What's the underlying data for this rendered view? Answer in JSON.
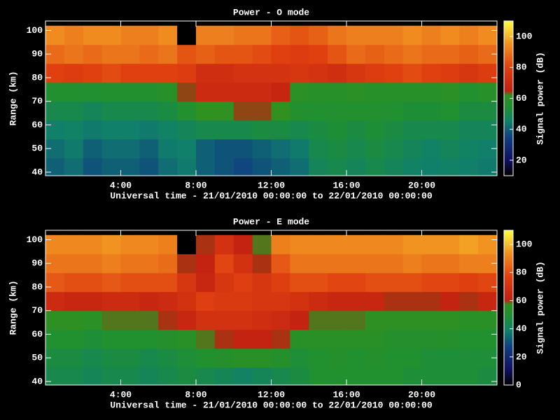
{
  "chart_data": [
    {
      "type": "heatmap",
      "title": "Power - O mode",
      "xlabel": "Universal time - 21/01/2010 00:00:00 to 22/01/2010 00:00:00",
      "ylabel": "Range (km)",
      "colorbar_label": "Signal power (dB)",
      "x": [
        0.5,
        1.5,
        2.5,
        3.5,
        4.5,
        5.5,
        6.5,
        7.5,
        8.5,
        9.5,
        10.5,
        11.5,
        12.5,
        13.5,
        14.5,
        15.5,
        16.5,
        17.5,
        18.5,
        19.5,
        20.5,
        21.5,
        22.5,
        23.5
      ],
      "y": [
        42,
        50,
        58,
        66,
        74,
        82,
        90,
        98
      ],
      "values": [
        [
          40,
          42,
          38,
          40,
          40,
          38,
          42,
          44,
          40,
          38,
          36,
          38,
          40,
          42,
          48,
          50,
          48,
          50,
          48,
          46,
          45,
          46,
          45,
          44
        ],
        [
          42,
          44,
          40,
          42,
          42,
          40,
          44,
          45,
          40,
          38,
          38,
          40,
          42,
          44,
          50,
          52,
          50,
          52,
          50,
          48,
          46,
          48,
          46,
          45
        ],
        [
          45,
          46,
          44,
          45,
          45,
          44,
          46,
          48,
          50,
          50,
          50,
          52,
          52,
          50,
          52,
          54,
          52,
          54,
          52,
          50,
          50,
          50,
          48,
          48
        ],
        [
          50,
          50,
          48,
          50,
          50,
          50,
          52,
          56,
          62,
          62,
          64,
          64,
          62,
          56,
          55,
          56,
          56,
          56,
          55,
          54,
          54,
          55,
          52,
          52
        ],
        [
          56,
          56,
          55,
          56,
          56,
          56,
          58,
          64,
          70,
          70,
          70,
          70,
          68,
          60,
          58,
          58,
          60,
          58,
          58,
          58,
          58,
          60,
          56,
          58
        ],
        [
          80,
          78,
          80,
          82,
          80,
          80,
          80,
          78,
          72,
          72,
          74,
          74,
          74,
          76,
          74,
          72,
          76,
          78,
          80,
          82,
          80,
          78,
          76,
          78
        ],
        [
          88,
          90,
          88,
          90,
          90,
          88,
          90,
          84,
          86,
          84,
          84,
          82,
          80,
          78,
          80,
          84,
          88,
          86,
          88,
          90,
          88,
          88,
          86,
          88
        ],
        [
          94,
          92,
          94,
          94,
          92,
          92,
          94,
          null,
          92,
          92,
          90,
          90,
          86,
          84,
          86,
          90,
          92,
          92,
          92,
          94,
          92,
          94,
          92,
          94
        ]
      ],
      "xlim": [
        0,
        24
      ],
      "xticks": [
        {
          "value": 4,
          "label": "4:00"
        },
        {
          "value": 8,
          "label": "8:00"
        },
        {
          "value": 12,
          "label": "12:00"
        },
        {
          "value": 16,
          "label": "16:00"
        },
        {
          "value": 20,
          "label": "20:00"
        }
      ],
      "ylim": [
        38.5,
        104
      ],
      "yticks": [
        40,
        50,
        60,
        70,
        80,
        90,
        100
      ],
      "clim": [
        10,
        110
      ],
      "cticks": [
        20,
        40,
        60,
        80,
        100
      ],
      "colorscale": [
        [
          0,
          "#000000"
        ],
        [
          0.1,
          "#101060"
        ],
        [
          0.25,
          "#104080"
        ],
        [
          0.35,
          "#10806a"
        ],
        [
          0.45,
          "#209030"
        ],
        [
          0.52,
          "#309020"
        ],
        [
          0.55,
          "#c02010"
        ],
        [
          0.7,
          "#e04010"
        ],
        [
          0.85,
          "#f09020"
        ],
        [
          1,
          "#ffff40"
        ]
      ],
      "missing_color": "#000000"
    },
    {
      "type": "heatmap",
      "title": "Power - E mode",
      "xlabel": "Universal time - 21/01/2010 00:00:00 to 22/01/2010 00:00:00",
      "ylabel": "Range (km)",
      "colorbar_label": "Signal power (dB)",
      "x": [
        0.5,
        1.5,
        2.5,
        3.5,
        4.5,
        5.5,
        6.5,
        7.5,
        8.5,
        9.5,
        10.5,
        11.5,
        12.5,
        13.5,
        14.5,
        15.5,
        16.5,
        17.5,
        18.5,
        19.5,
        20.5,
        21.5,
        22.5,
        23.5
      ],
      "y": [
        42,
        50,
        58,
        66,
        74,
        82,
        90,
        98
      ],
      "values": [
        [
          44,
          44,
          42,
          44,
          44,
          42,
          44,
          46,
          44,
          42,
          40,
          42,
          44,
          46,
          50,
          50,
          50,
          50,
          50,
          48,
          48,
          48,
          48,
          46
        ],
        [
          46,
          46,
          44,
          46,
          46,
          44,
          46,
          48,
          50,
          52,
          54,
          54,
          52,
          48,
          50,
          52,
          50,
          52,
          50,
          50,
          48,
          48,
          48,
          48
        ],
        [
          50,
          50,
          48,
          50,
          50,
          50,
          52,
          54,
          58,
          60,
          62,
          62,
          60,
          54,
          54,
          54,
          54,
          54,
          52,
          52,
          52,
          52,
          50,
          50
        ],
        [
          56,
          56,
          55,
          58,
          58,
          58,
          60,
          64,
          70,
          70,
          70,
          68,
          66,
          62,
          58,
          58,
          58,
          56,
          56,
          56,
          56,
          56,
          54,
          54
        ],
        [
          66,
          64,
          64,
          66,
          66,
          64,
          66,
          70,
          76,
          74,
          74,
          72,
          72,
          70,
          66,
          64,
          64,
          64,
          60,
          60,
          60,
          62,
          60,
          64
        ],
        [
          82,
          80,
          80,
          82,
          80,
          80,
          80,
          72,
          64,
          72,
          76,
          72,
          76,
          80,
          80,
          78,
          78,
          80,
          80,
          80,
          78,
          78,
          76,
          78
        ],
        [
          88,
          88,
          88,
          90,
          88,
          88,
          86,
          60,
          62,
          78,
          70,
          60,
          82,
          88,
          88,
          88,
          88,
          88,
          88,
          90,
          88,
          88,
          90,
          90
        ],
        [
          92,
          92,
          92,
          94,
          92,
          92,
          90,
          null,
          60,
          70,
          62,
          58,
          90,
          92,
          92,
          92,
          92,
          92,
          92,
          94,
          94,
          94,
          96,
          94
        ]
      ],
      "xlim": [
        0,
        24
      ],
      "xticks": [
        {
          "value": 4,
          "label": "4:00"
        },
        {
          "value": 8,
          "label": "8:00"
        },
        {
          "value": 12,
          "label": "12:00"
        },
        {
          "value": 16,
          "label": "16:00"
        },
        {
          "value": 20,
          "label": "20:00"
        }
      ],
      "ylim": [
        38.5,
        104
      ],
      "yticks": [
        40,
        50,
        60,
        70,
        80,
        90,
        100
      ],
      "clim": [
        0,
        110
      ],
      "cticks": [
        0,
        20,
        40,
        60,
        80,
        100
      ],
      "colorscale": [
        [
          0,
          "#000000"
        ],
        [
          0.1,
          "#101060"
        ],
        [
          0.25,
          "#104080"
        ],
        [
          0.35,
          "#10806a"
        ],
        [
          0.45,
          "#209030"
        ],
        [
          0.52,
          "#309020"
        ],
        [
          0.55,
          "#c02010"
        ],
        [
          0.7,
          "#e04010"
        ],
        [
          0.85,
          "#f09020"
        ],
        [
          1,
          "#ffff40"
        ]
      ],
      "missing_color": "#000000"
    }
  ]
}
